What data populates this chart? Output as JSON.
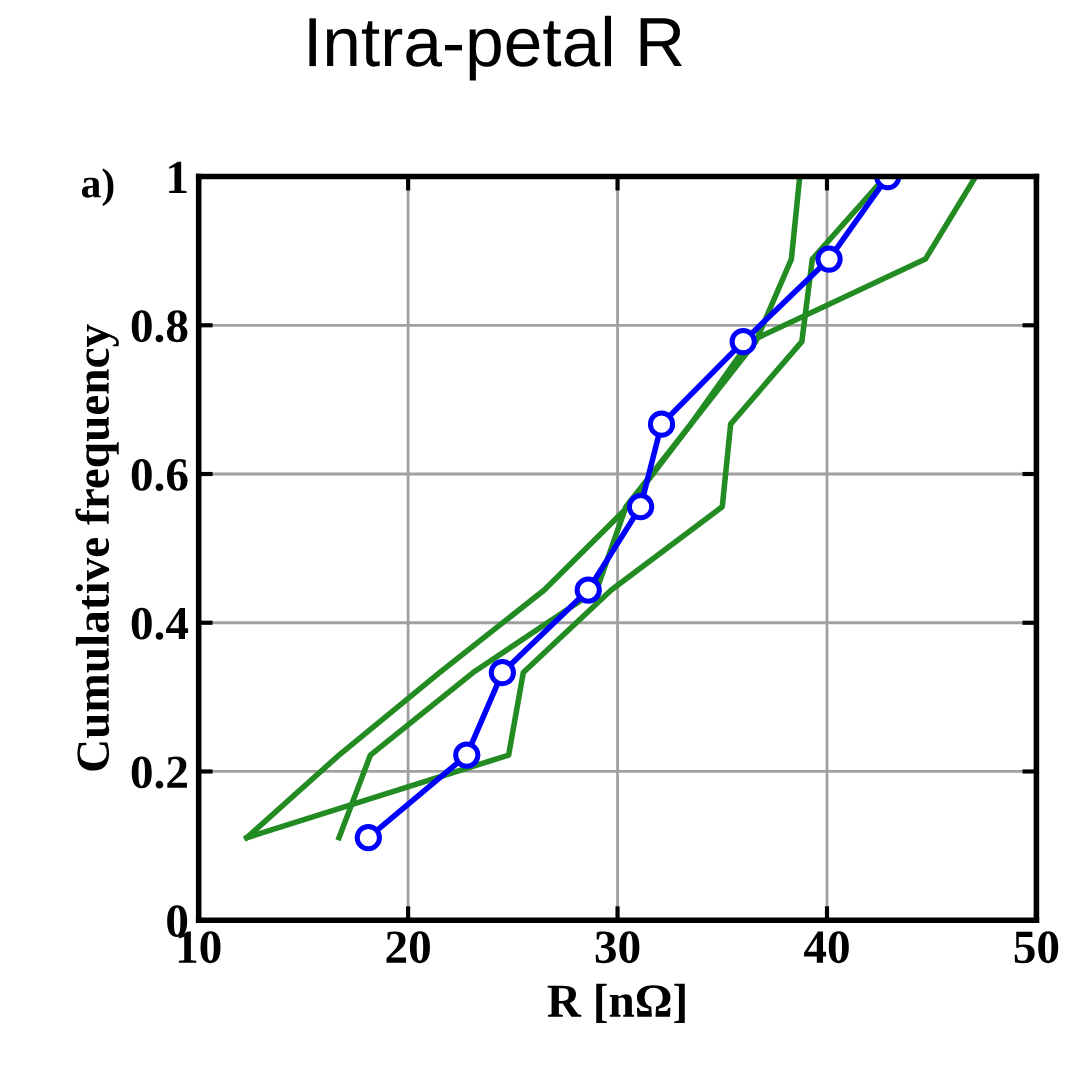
{
  "chart_data": {
    "type": "line",
    "title": "Intra-petal R",
    "xlabel": "R [nΩ]",
    "ylabel": "Cumulative frequency",
    "annotations": [
      "a)"
    ],
    "xlim": [
      10,
      50
    ],
    "xticks": [
      10,
      20,
      30,
      40,
      50
    ],
    "ylim": [
      0,
      1
    ],
    "yticks": [
      0,
      0.2,
      0.4,
      0.6,
      0.8,
      1
    ],
    "grid": true,
    "series": [
      {
        "color": "#228b22",
        "marker": "none",
        "x": [
          12.3,
          24.8,
          25.5,
          29.7,
          35.0,
          35.4,
          38.8,
          39.3,
          42.8
        ],
        "values": [
          0.111,
          0.222,
          0.333,
          0.444,
          0.556,
          0.667,
          0.778,
          0.889,
          1
        ]
      },
      {
        "color": "#228b22",
        "marker": "none",
        "x": [
          16.7,
          18.2,
          23.1,
          29.0,
          30.4,
          33.5,
          36.6,
          38.3,
          38.7
        ],
        "values": [
          0.111,
          0.222,
          0.333,
          0.444,
          0.556,
          0.667,
          0.778,
          0.889,
          1
        ]
      },
      {
        "color": "#228b22",
        "marker": "none",
        "x": [
          12.3,
          16.7,
          21.5,
          26.5,
          30.5,
          33.5,
          36.3,
          44.7,
          47.1
        ],
        "values": [
          0.111,
          0.222,
          0.333,
          0.444,
          0.556,
          0.667,
          0.778,
          0.889,
          1
        ]
      },
      {
        "color": "#0000ff",
        "marker": "circle",
        "x": [
          18.1,
          22.8,
          24.5,
          28.6,
          31.1,
          32.1,
          36.0,
          40.1,
          42.9
        ],
        "values": [
          0.111,
          0.222,
          0.333,
          0.444,
          0.556,
          0.667,
          0.778,
          0.889,
          1
        ]
      }
    ]
  }
}
